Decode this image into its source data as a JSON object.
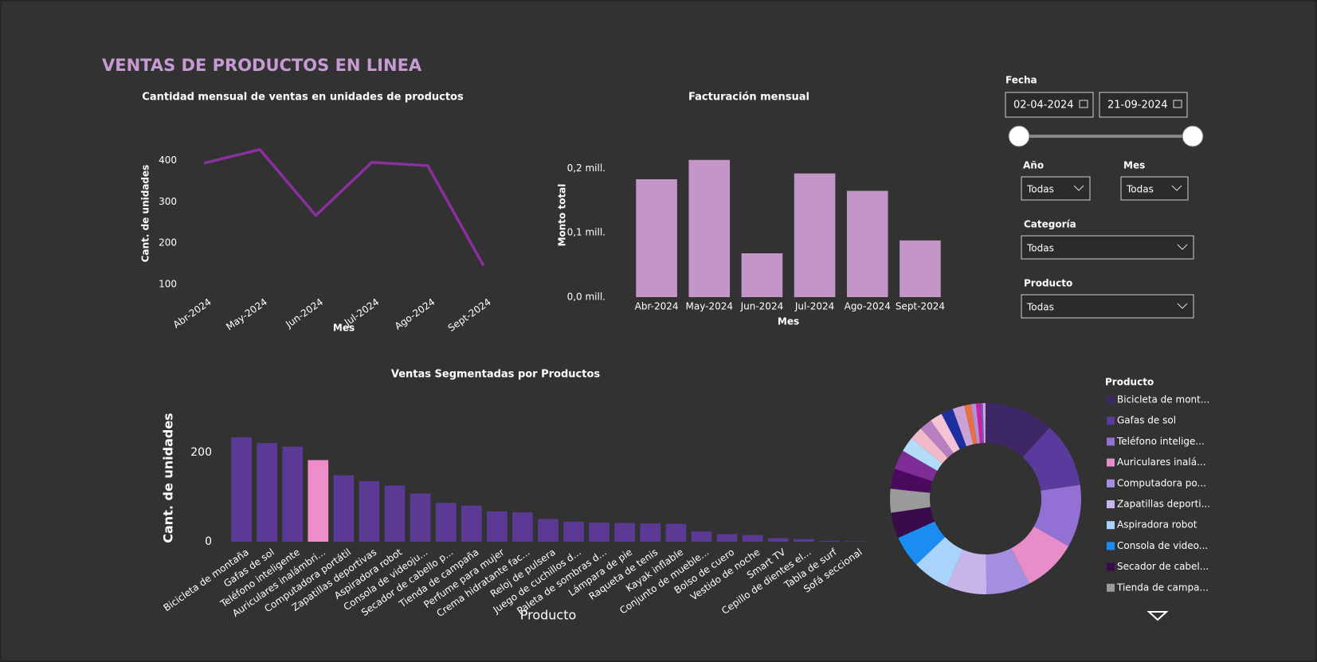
{
  "title": "VENTAS DE PRODUCTOS EN LINEA",
  "filters": {
    "date": {
      "label": "Fecha",
      "start": "02-04-2024",
      "end": "21-09-2024"
    },
    "year": {
      "label": "Año",
      "value": "Todas"
    },
    "month": {
      "label": "Mes",
      "value": "Todas"
    },
    "category": {
      "label": "Categoría",
      "value": "Todas"
    },
    "product": {
      "label": "Producto",
      "value": "Todas"
    }
  },
  "chart_data": [
    {
      "type": "line",
      "title": "Cantidad  mensual de ventas en unidades de productos",
      "x_label": "Mes",
      "y_label": "Cant. de unidades",
      "categories": [
        "Abr-2024",
        "May-2024",
        "Jun-2024",
        "Jul-2024",
        "Ago-2024",
        "Sept-2024"
      ],
      "values": [
        394,
        427,
        267,
        396,
        388,
        145
      ],
      "color": "#8a2f9e",
      "ylim": [
        90,
        440
      ],
      "yticks": [
        100,
        200,
        300,
        400
      ]
    },
    {
      "type": "bar",
      "title": "Facturación mensual",
      "x_label": "Mes",
      "y_label": "Monto total",
      "categories": [
        "Abr-2024",
        "May-2024",
        "Jun-2024",
        "Jul-2024",
        "Ago-2024",
        "Sept-2024"
      ],
      "values": [
        183000,
        213000,
        68000,
        192000,
        165000,
        88000
      ],
      "color": "#c496c8",
      "ylim": [
        0,
        230000
      ],
      "yticks": [
        {
          "value": 0,
          "label": "0,0 mill."
        },
        {
          "value": 100000,
          "label": "0,1 mill."
        },
        {
          "value": 200000,
          "label": "0,2 mill."
        }
      ]
    },
    {
      "type": "bar",
      "title": "Ventas Segmentadas por Productos",
      "x_label": "Producto",
      "y_label": "Cant. de unidades",
      "categories": [
        "Bicicleta de montaña",
        "Gafas de sol",
        "Teléfono inteligente",
        "Auriculares inalámbri...",
        "Computadora portátil",
        "Zapatillas deportivas",
        "Aspiradora robot",
        "Consola de videoju...",
        "Secador de cabello p...",
        "Tienda de campaña",
        "Perfume para mujer",
        "Crema hidratante fac...",
        "Reloj de pulsera",
        "Juego de cuchillos d...",
        "Paleta de sombras d...",
        "Lámpara de pie",
        "Raqueta de tenis",
        "Kayak inflable",
        "Conjunto de mueble...",
        "Bolso de cuero",
        "Vestido de noche",
        "Smart TV",
        "Cepillo de dientes el...",
        "Tabla de surf",
        "Sofá seccional"
      ],
      "values": [
        234,
        221,
        213,
        183,
        149,
        136,
        126,
        108,
        87,
        81,
        68,
        66,
        51,
        45,
        43,
        42,
        41,
        40,
        23,
        17,
        15,
        8,
        6,
        2,
        1
      ],
      "colors": [
        "#5b3a96",
        "#5b3a96",
        "#5b3a96",
        "#ee8dca",
        "#5b3a96",
        "#5b3a96",
        "#5b3a96",
        "#5b3a96",
        "#5b3a96",
        "#5b3a96",
        "#5b3a96",
        "#5b3a96",
        "#5b3a96",
        "#5b3a96",
        "#5b3a96",
        "#5b3a96",
        "#5b3a96",
        "#5b3a96",
        "#5b3a96",
        "#5b3a96",
        "#5b3a96",
        "#5b3a96",
        "#5b3a96",
        "#5b3a96",
        "#5b3a96"
      ],
      "ylim": [
        0,
        250
      ],
      "yticks": [
        0,
        200
      ]
    },
    {
      "type": "pie",
      "legend_title": "Producto",
      "categories": [
        "Bicicleta de mont...",
        "Gafas de sol",
        "Teléfono intelige...",
        "Auriculares inalá...",
        "Computadora po...",
        "Zapatillas deporti...",
        "Aspiradora robot",
        "Consola de video...",
        "Secador de cabel...",
        "Tienda de campa...",
        null,
        null,
        null,
        null,
        null,
        null,
        null,
        null,
        null,
        null,
        null,
        null,
        null,
        null,
        null
      ],
      "values": [
        234,
        221,
        213,
        183,
        149,
        136,
        126,
        108,
        87,
        81,
        68,
        66,
        51,
        45,
        43,
        42,
        41,
        40,
        23,
        17,
        15,
        8,
        6,
        2,
        1
      ],
      "colors": [
        "#3d2766",
        "#5a3a9c",
        "#9270d4",
        "#e88dca",
        "#a38ee0",
        "#c8b5ea",
        "#a9d3fb",
        "#1a8cf2",
        "#3a0b4a",
        "#9a9a9a",
        "#4b0a5e",
        "#7e2d96",
        "#b2dcf8",
        "#f2b9c8",
        "#b87fc0",
        "#f4c4d6",
        "#1f2fa0",
        "#c9a3d8",
        "#e87040",
        "#b58ed8",
        "#d020a0",
        "#6a5acd",
        "#f0a0d0",
        "#a0a0ff",
        "#ffe0a0"
      ]
    }
  ]
}
